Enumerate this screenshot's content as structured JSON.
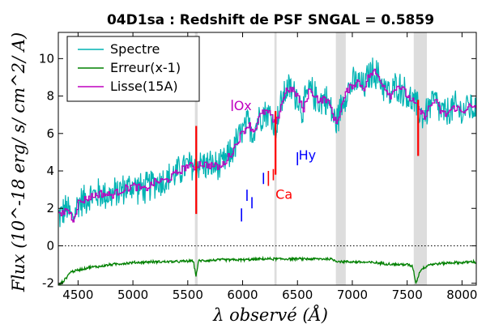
{
  "chart_data": {
    "type": "line",
    "title": "04D1sa : Redshift de PSF SNGAL = 0.5859",
    "xlabel": "λ observé (Å)",
    "ylabel": "Flux (10^-18 erg/ s/ cm^2/ A)",
    "xlim": [
      4320,
      8130
    ],
    "ylim": [
      -2.1,
      11.4
    ],
    "x_ticks": [
      4500,
      5000,
      5500,
      6000,
      6500,
      7000,
      7500,
      8000
    ],
    "y_ticks": [
      -2,
      0,
      2,
      4,
      6,
      8,
      10
    ],
    "x_tick_labels": [
      "4500",
      "5000",
      "5500",
      "6000",
      "6500",
      "7000",
      "7500",
      "8000"
    ],
    "y_tick_labels": [
      "-2",
      "0",
      "2",
      "4",
      "6",
      "8",
      "10"
    ],
    "zero_line": 0,
    "shaded_bands": [
      [
        5565,
        5590
      ],
      [
        6290,
        6310
      ],
      [
        6850,
        6940
      ],
      [
        7560,
        7680
      ]
    ],
    "legend": {
      "position": "top-left",
      "entries": [
        {
          "name": "Spectre",
          "color": "#00b3b3"
        },
        {
          "name": "Erreur(x-1)",
          "color": "#008000"
        },
        {
          "name": "Lisse(15A)",
          "color": "#bf00bf"
        }
      ]
    },
    "series": [
      {
        "name": "Spectre",
        "color": "#00b3b3",
        "x": [
          4330,
          4400,
          4450,
          4500,
          4600,
          4700,
          4800,
          4900,
          5000,
          5100,
          5200,
          5300,
          5400,
          5500,
          5560,
          5600,
          5700,
          5800,
          5850,
          5900,
          5950,
          6000,
          6050,
          6100,
          6150,
          6200,
          6250,
          6300,
          6350,
          6400,
          6450,
          6500,
          6550,
          6600,
          6650,
          6700,
          6750,
          6800,
          6850,
          6900,
          6950,
          7000,
          7050,
          7100,
          7150,
          7200,
          7250,
          7300,
          7350,
          7400,
          7450,
          7500,
          7550,
          7600,
          7650,
          7700,
          7750,
          7800,
          7850,
          7900,
          7950,
          8000,
          8050,
          8100,
          8130
        ],
        "y": [
          1.6,
          2.0,
          1.4,
          2.3,
          2.6,
          2.8,
          2.7,
          3.0,
          3.2,
          3.0,
          3.4,
          3.5,
          3.9,
          4.3,
          4.2,
          4.4,
          4.3,
          4.2,
          4.6,
          5.0,
          5.6,
          6.1,
          6.5,
          6.1,
          6.9,
          7.2,
          7.0,
          6.4,
          7.6,
          8.4,
          8.3,
          8.0,
          7.2,
          8.3,
          8.1,
          7.7,
          7.9,
          7.4,
          6.5,
          7.5,
          8.3,
          8.6,
          8.8,
          8.4,
          9.1,
          9.3,
          8.9,
          8.4,
          8.0,
          8.6,
          8.4,
          8.0,
          7.7,
          7.3,
          6.9,
          7.4,
          7.8,
          7.2,
          7.0,
          7.3,
          7.4,
          7.1,
          7.5,
          7.3,
          7.4
        ],
        "noise_amplitude": 1.0
      },
      {
        "name": "Erreur(x-1)",
        "color": "#008000",
        "x": [
          4330,
          4380,
          4430,
          4500,
          4600,
          4700,
          4800,
          4900,
          5000,
          5200,
          5400,
          5550,
          5575,
          5600,
          5800,
          6000,
          6200,
          6400,
          6600,
          6800,
          6850,
          6900,
          7000,
          7200,
          7400,
          7500,
          7550,
          7580,
          7620,
          7700,
          7800,
          7900,
          8000,
          8100,
          8130
        ],
        "y": [
          -2.1,
          -1.8,
          -1.4,
          -1.3,
          -1.15,
          -1.1,
          -1.0,
          -0.95,
          -0.9,
          -0.85,
          -0.85,
          -0.8,
          -1.6,
          -0.8,
          -0.75,
          -0.75,
          -0.7,
          -0.7,
          -0.7,
          -0.7,
          -0.8,
          -0.85,
          -0.85,
          -0.9,
          -1.0,
          -1.0,
          -1.1,
          -2.0,
          -1.3,
          -1.0,
          -0.95,
          -0.9,
          -0.9,
          -0.85,
          -0.9
        ],
        "noise_amplitude": 0.08
      },
      {
        "name": "Lisse(15A)",
        "color": "#bf00bf",
        "x": [
          4330,
          4400,
          4450,
          4500,
          4600,
          4700,
          4800,
          4900,
          5000,
          5100,
          5200,
          5300,
          5400,
          5500,
          5560,
          5600,
          5700,
          5800,
          5850,
          5900,
          5950,
          6000,
          6050,
          6100,
          6150,
          6200,
          6250,
          6300,
          6350,
          6400,
          6450,
          6500,
          6550,
          6600,
          6650,
          6700,
          6750,
          6800,
          6850,
          6900,
          6950,
          7000,
          7050,
          7100,
          7150,
          7200,
          7250,
          7300,
          7350,
          7400,
          7450,
          7500,
          7550,
          7600,
          7650,
          7700,
          7750,
          7800,
          7850,
          7900,
          7950,
          8000,
          8050,
          8100,
          8130
        ],
        "y": [
          1.6,
          2.0,
          1.4,
          2.3,
          2.6,
          2.8,
          2.7,
          3.0,
          3.2,
          3.0,
          3.4,
          3.5,
          3.9,
          4.3,
          4.2,
          4.4,
          4.3,
          4.2,
          4.6,
          5.0,
          5.6,
          6.1,
          6.5,
          6.1,
          6.9,
          7.2,
          7.0,
          6.4,
          7.6,
          8.4,
          8.3,
          8.0,
          7.2,
          8.3,
          8.1,
          7.7,
          7.9,
          7.4,
          6.5,
          7.5,
          8.3,
          8.6,
          8.8,
          8.4,
          9.1,
          9.3,
          8.9,
          8.4,
          8.0,
          8.6,
          8.4,
          8.0,
          7.7,
          7.3,
          6.9,
          7.4,
          7.8,
          7.2,
          7.0,
          7.3,
          7.4,
          7.1,
          7.5,
          7.3,
          7.4
        ],
        "noise_amplitude": 0.2
      }
    ],
    "sky_lines": [
      {
        "x": 5577,
        "y_low": 1.7,
        "y_high": 6.4,
        "color": "#ff0000"
      },
      {
        "x": 6300,
        "y_low": 3.8,
        "y_high": 7.2,
        "color": "#ff0000"
      },
      {
        "x": 7600,
        "y_low": 4.8,
        "y_high": 7.8,
        "color": "#ff0000"
      }
    ],
    "line_markers": [
      {
        "x": 5990,
        "y_low": 1.3,
        "y_high": 2.0,
        "color": "#0000ff"
      },
      {
        "x": 6040,
        "y_low": 2.4,
        "y_high": 3.0,
        "color": "#0000ff"
      },
      {
        "x": 6085,
        "y_low": 2.0,
        "y_high": 2.6,
        "color": "#0000ff"
      },
      {
        "x": 6190,
        "y_low": 3.3,
        "y_high": 3.9,
        "color": "#0000ff"
      },
      {
        "x": 6235,
        "y_low": 3.2,
        "y_high": 4.0,
        "color": "#ff0000"
      },
      {
        "x": 6280,
        "y_low": 3.5,
        "y_high": 4.1,
        "color": "#ff0000"
      },
      {
        "x": 5905,
        "y_low": 7.2,
        "y_high": 7.8,
        "color": "#bf00bf"
      },
      {
        "x": 6500,
        "y_low": 4.3,
        "y_high": 5.0,
        "color": "#0000ff"
      }
    ],
    "annotations": [
      {
        "text": "Ox",
        "x": 5920,
        "y": 7.25,
        "color": "#bf00bf"
      },
      {
        "text": "Ca",
        "x": 6300,
        "y": 2.5,
        "color": "#ff0000"
      },
      {
        "text": "Hy",
        "x": 6510,
        "y": 4.6,
        "color": "#0000ff"
      }
    ]
  }
}
